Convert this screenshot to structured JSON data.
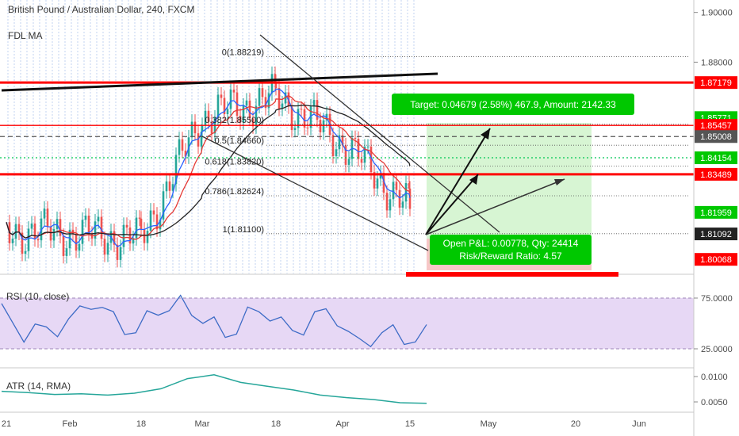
{
  "header": {
    "symbol_title": "British Pound / Australian Dollar, 240, FXCM",
    "indicator": "FDL MA"
  },
  "colors": {
    "candle_up": "#26a69a",
    "candle_down": "#ef5350",
    "ma_red": "#e53935",
    "ma_blue": "#2962ff",
    "ma_black": "#222222",
    "level_red": "#ff0000",
    "level_green": "#00c853",
    "target_box": "#d7f5d3",
    "target_label": "#00c800",
    "stop_box": "#f7c7c7",
    "rsi_line": "#3d6bc6",
    "rsi_band": "#e7d8f5",
    "atr_line": "#26a69a"
  },
  "chart_data": [
    {
      "type": "candlestick",
      "title": "British Pound / Australian Dollar, 240, FXCM",
      "ylim": [
        1.795,
        1.905
      ],
      "price_ticks": [
        "1.90000",
        "1.88000"
      ],
      "x_tick_labels": [
        "21",
        "Feb",
        "18",
        "Mar",
        "18",
        "Apr",
        "15",
        "May",
        "20",
        "Jun"
      ],
      "price_path": [
        {
          "x": "21",
          "y": 1.812
        },
        {
          "x": "Feb",
          "y": 1.811
        },
        {
          "x": "18",
          "y": 1.809
        },
        {
          "x": "Mar",
          "y": 1.858
        },
        {
          "x": "18",
          "y": 1.866
        },
        {
          "x": "Apr",
          "y": 1.848
        },
        {
          "x": "15",
          "y": 1.821
        }
      ],
      "price_tags": [
        {
          "label": "1.87179",
          "color": "#ff0000"
        },
        {
          "label": "1.85771",
          "color": "#00c800"
        },
        {
          "label": "1.85457",
          "color": "#ff0000"
        },
        {
          "label": "1.85008",
          "color": "#555555"
        },
        {
          "label": "1.84154",
          "color": "#00c800"
        },
        {
          "label": "1.83489",
          "color": "#ff0000"
        },
        {
          "label": "1.81959",
          "color": "#00c800"
        },
        {
          "label": "1.81092",
          "color": "#222222"
        },
        {
          "label": "1.80068",
          "color": "#ff0000"
        }
      ],
      "fibonacci": [
        {
          "label": "0(1.88219)",
          "value": 1.88219
        },
        {
          "label": "0.382(1.85500)",
          "value": 1.855
        },
        {
          "label": "0.5(1.84660)",
          "value": 1.8466
        },
        {
          "label": "0.618(1.83820)",
          "value": 1.8382
        },
        {
          "label": "0.786(1.82624)",
          "value": 1.82624
        },
        {
          "label": "1(1.81100)",
          "value": 1.811
        }
      ],
      "horizontal_levels": [
        {
          "value": 1.87179,
          "color": "#ff0000",
          "style": "thick"
        },
        {
          "value": 1.85457,
          "color": "#ff0000",
          "style": "solid"
        },
        {
          "value": 1.85008,
          "color": "#555555",
          "style": "dashed"
        },
        {
          "value": 1.84154,
          "color": "#00c853",
          "style": "dotted"
        },
        {
          "value": 1.83489,
          "color": "#ff0000",
          "style": "thick"
        }
      ],
      "position": {
        "target_label": "Target: 0.04679 (2.58%) 467.9, Amount: 2142.33",
        "pnl_label": "Open P&L: 0.00778, Qty: 24414",
        "rr_label": "Risk/Reward Ratio: 4.57",
        "entry": 1.81092,
        "target": 1.85771,
        "stop": 1.80068
      }
    },
    {
      "type": "line",
      "title": "RSI (10, close)",
      "ylim": [
        10,
        90
      ],
      "band": [
        30,
        70
      ],
      "tick_labels": [
        "75.0000",
        "25.0000"
      ],
      "series": [
        {
          "name": "RSI (10, close)",
          "values": [
            65,
            32,
            45,
            52,
            60,
            58,
            40,
            55,
            72,
            48,
            36,
            62,
            50,
            42,
            58,
            46,
            35,
            40,
            30,
            47
          ]
        }
      ]
    },
    {
      "type": "line",
      "title": "ATR (14, RMA)",
      "ylim": [
        0.0035,
        0.0105
      ],
      "tick_labels": [
        "0.0100",
        "0.0050"
      ],
      "series": [
        {
          "name": "ATR (14, RMA)",
          "values": [
            0.0068,
            0.0066,
            0.0063,
            0.0064,
            0.0062,
            0.0065,
            0.0072,
            0.0088,
            0.0094,
            0.0082,
            0.0076,
            0.007,
            0.0062,
            0.0058,
            0.0055,
            0.005,
            0.0049
          ]
        }
      ]
    }
  ]
}
